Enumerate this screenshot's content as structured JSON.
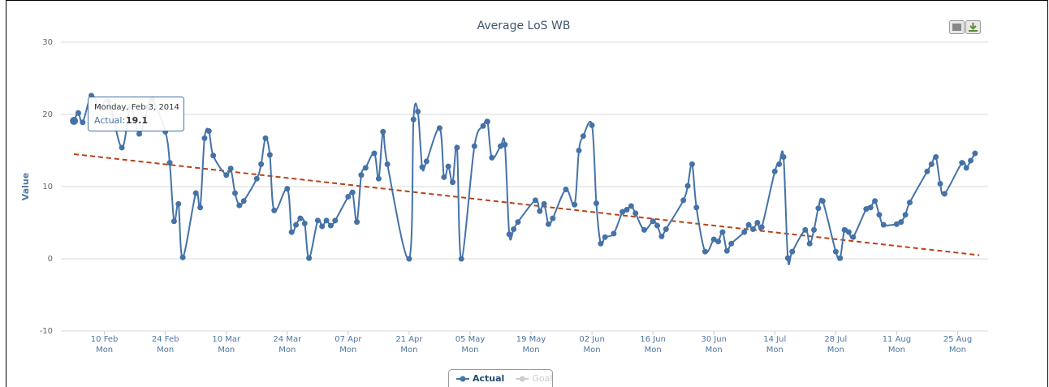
{
  "chart_data": {
    "type": "line",
    "title": "Average LoS WB",
    "y_label": "Value",
    "xlim": [
      "2014-01-31",
      "2014-09-01"
    ],
    "ylim": [
      -10,
      30
    ],
    "yticks": [
      -10,
      0,
      10,
      20,
      30
    ],
    "grid": true,
    "xticks": [
      {
        "value": "2014-02-10",
        "label": "10 Feb",
        "weekday": "Mon"
      },
      {
        "value": "2014-02-24",
        "label": "24 Feb",
        "weekday": "Mon"
      },
      {
        "value": "2014-03-10",
        "label": "10 Mar",
        "weekday": "Mon"
      },
      {
        "value": "2014-03-24",
        "label": "24 Mar",
        "weekday": "Mon"
      },
      {
        "value": "2014-04-07",
        "label": "07 Apr",
        "weekday": "Mon"
      },
      {
        "value": "2014-04-21",
        "label": "21 Apr",
        "weekday": "Mon"
      },
      {
        "value": "2014-05-05",
        "label": "05 May",
        "weekday": "Mon"
      },
      {
        "value": "2014-05-19",
        "label": "19 May",
        "weekday": "Mon"
      },
      {
        "value": "2014-06-02",
        "label": "02 Jun",
        "weekday": "Mon"
      },
      {
        "value": "2014-06-16",
        "label": "16 Jun",
        "weekday": "Mon"
      },
      {
        "value": "2014-06-30",
        "label": "30 Jun",
        "weekday": "Mon"
      },
      {
        "value": "2014-07-14",
        "label": "14 Jul",
        "weekday": "Mon"
      },
      {
        "value": "2014-07-28",
        "label": "28 Jul",
        "weekday": "Mon"
      },
      {
        "value": "2014-08-11",
        "label": "11 Aug",
        "weekday": "Mon"
      },
      {
        "value": "2014-08-25",
        "label": "25 Aug",
        "weekday": "Mon"
      }
    ],
    "series": [
      {
        "name": "Actual",
        "color": "#4572a7",
        "x": [
          "2014-02-03",
          "2014-02-04",
          "2014-02-05",
          "2014-02-07",
          "2014-02-09",
          "2014-02-11",
          "2014-02-14",
          "2014-02-16",
          "2014-02-18",
          "2014-02-20",
          "2014-02-21",
          "2014-02-24",
          "2014-02-25",
          "2014-02-26",
          "2014-02-27",
          "2014-02-28",
          "2014-03-03",
          "2014-03-04",
          "2014-03-05",
          "2014-03-06",
          "2014-03-07",
          "2014-03-10",
          "2014-03-11",
          "2014-03-12",
          "2014-03-13",
          "2014-03-14",
          "2014-03-17",
          "2014-03-18",
          "2014-03-19",
          "2014-03-20",
          "2014-03-21",
          "2014-03-24",
          "2014-03-25",
          "2014-03-26",
          "2014-03-27",
          "2014-03-28",
          "2014-03-29",
          "2014-03-31",
          "2014-04-01",
          "2014-04-02",
          "2014-04-03",
          "2014-04-04",
          "2014-04-07",
          "2014-04-08",
          "2014-04-09",
          "2014-04-10",
          "2014-04-11",
          "2014-04-13",
          "2014-04-14",
          "2014-04-15",
          "2014-04-16",
          "2014-04-21",
          "2014-04-22",
          "2014-04-23",
          "2014-04-24",
          "2014-04-25",
          "2014-04-28",
          "2014-04-29",
          "2014-04-30",
          "2014-05-01",
          "2014-05-02",
          "2014-05-03",
          "2014-05-06",
          "2014-05-08",
          "2014-05-09",
          "2014-05-10",
          "2014-05-12",
          "2014-05-13",
          "2014-05-14",
          "2014-05-15",
          "2014-05-16",
          "2014-05-20",
          "2014-05-21",
          "2014-05-22",
          "2014-05-23",
          "2014-05-24",
          "2014-05-27",
          "2014-05-29",
          "2014-05-30",
          "2014-05-31",
          "2014-06-02",
          "2014-06-03",
          "2014-06-04",
          "2014-06-05",
          "2014-06-07",
          "2014-06-09",
          "2014-06-10",
          "2014-06-11",
          "2014-06-12",
          "2014-06-14",
          "2014-06-16",
          "2014-06-17",
          "2014-06-18",
          "2014-06-19",
          "2014-06-23",
          "2014-06-24",
          "2014-06-25",
          "2014-06-26",
          "2014-06-28",
          "2014-06-30",
          "2014-07-01",
          "2014-07-02",
          "2014-07-03",
          "2014-07-04",
          "2014-07-07",
          "2014-07-08",
          "2014-07-09",
          "2014-07-10",
          "2014-07-11",
          "2014-07-14",
          "2014-07-15",
          "2014-07-16",
          "2014-07-17",
          "2014-07-18",
          "2014-07-21",
          "2014-07-22",
          "2014-07-23",
          "2014-07-24",
          "2014-07-25",
          "2014-07-28",
          "2014-07-29",
          "2014-07-30",
          "2014-07-31",
          "2014-08-01",
          "2014-08-04",
          "2014-08-05",
          "2014-08-06",
          "2014-08-07",
          "2014-08-08",
          "2014-08-11",
          "2014-08-12",
          "2014-08-13",
          "2014-08-14",
          "2014-08-18",
          "2014-08-19",
          "2014-08-20",
          "2014-08-21",
          "2014-08-22",
          "2014-08-26",
          "2014-08-27",
          "2014-08-28",
          "2014-08-29"
        ],
        "values": [
          19.1,
          20.2,
          18.9,
          22.6,
          21.0,
          21.8,
          15.4,
          21.0,
          17.3,
          21.0,
          22.1,
          17.6,
          13.3,
          5.2,
          7.6,
          0.2,
          9.1,
          7.1,
          16.7,
          17.7,
          14.3,
          11.6,
          12.5,
          9.1,
          7.4,
          8.0,
          11.1,
          13.1,
          16.7,
          14.4,
          6.7,
          9.7,
          3.7,
          4.7,
          5.6,
          4.9,
          0.1,
          5.3,
          4.5,
          5.3,
          4.6,
          5.3,
          8.6,
          9.2,
          5.1,
          11.6,
          12.6,
          14.6,
          11.1,
          17.6,
          13.1,
          0.0,
          19.3,
          20.4,
          12.7,
          13.5,
          18.1,
          11.3,
          12.8,
          10.6,
          15.4,
          0.0,
          15.6,
          18.4,
          19.0,
          14.0,
          15.6,
          15.8,
          3.4,
          4.1,
          5.1,
          8.1,
          6.6,
          7.6,
          4.8,
          5.6,
          9.6,
          7.5,
          15.0,
          17.0,
          18.5,
          7.7,
          2.1,
          3.0,
          3.5,
          6.5,
          6.8,
          7.3,
          6.3,
          4.0,
          5.2,
          4.6,
          3.1,
          4.1,
          8.1,
          10.1,
          13.1,
          7.1,
          1.0,
          2.7,
          2.4,
          3.7,
          1.1,
          2.1,
          3.7,
          4.7,
          4.1,
          5.0,
          4.4,
          12.1,
          13.1,
          14.1,
          0.1,
          1.0,
          4.0,
          2.1,
          4.0,
          7.0,
          8.0,
          1.0,
          0.1,
          4.0,
          3.7,
          3.0,
          6.9,
          7.1,
          8.0,
          6.1,
          4.7,
          4.8,
          5.1,
          6.1,
          7.8,
          12.1,
          13.1,
          14.1,
          10.4,
          9.0,
          13.3,
          12.6,
          13.6,
          14.6
        ]
      },
      {
        "name": "Goal",
        "color": "#cccccc",
        "visible": false
      }
    ],
    "trend": {
      "color": "#b5441a",
      "x": [
        "2014-02-03",
        "2014-08-30"
      ],
      "values": [
        14.5,
        0.5
      ]
    },
    "tooltip": {
      "date": "Monday, Feb 3, 2014",
      "label": "Actual:",
      "value": 19.1
    }
  }
}
